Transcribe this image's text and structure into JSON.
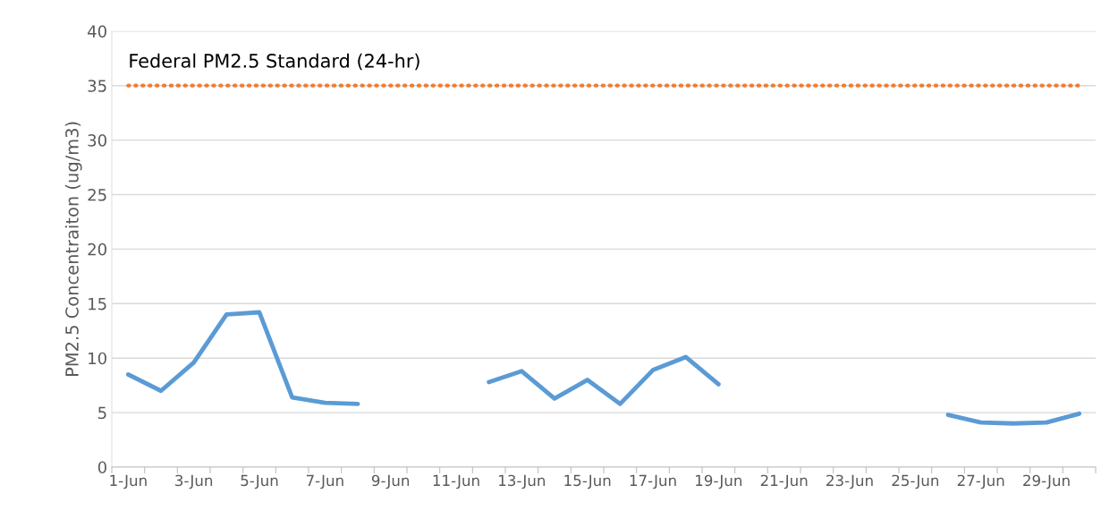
{
  "chart_data": {
    "type": "line",
    "ylabel": "PM2.5 Concentraiton (ug/m3)",
    "categories": [
      "1-Jun",
      null,
      "3-Jun",
      null,
      "5-Jun",
      null,
      "7-Jun",
      null,
      "9-Jun",
      null,
      "11-Jun",
      null,
      "13-Jun",
      null,
      "15-Jun",
      null,
      "17-Jun",
      null,
      "19-Jun",
      null,
      "21-Jun",
      null,
      "23-Jun",
      null,
      "25-Jun",
      null,
      "27-Jun",
      null,
      "29-Jun",
      null
    ],
    "series": [
      {
        "color": "#5b9bd5",
        "values": [
          8.5,
          7.0,
          9.6,
          14.0,
          14.2,
          6.4,
          5.9,
          5.8,
          null,
          null,
          null,
          7.8,
          8.8,
          6.3,
          8.0,
          5.8,
          8.9,
          10.1,
          7.6,
          null,
          null,
          null,
          null,
          null,
          null,
          4.8,
          4.1,
          4.0,
          4.1,
          4.9
        ]
      }
    ],
    "ylim": [
      0,
      40
    ],
    "yticks": [
      0,
      5,
      10,
      15,
      20,
      25,
      30,
      35,
      40
    ],
    "grid": "y",
    "legend": false,
    "marker": "none",
    "line_style": "solid",
    "ref_lines": [
      {
        "axis": "y",
        "value": 35,
        "label": "Federal PM2.5 Standard (24-hr)",
        "color": "#ed7d31",
        "line_style": "dotted"
      }
    ]
  }
}
